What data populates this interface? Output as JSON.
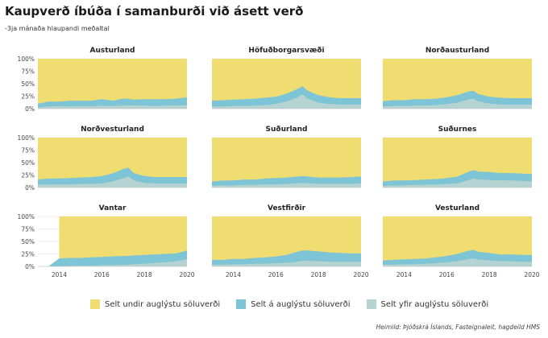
{
  "title": "Kaupverð íbúða í samanburði við ásett verð",
  "subtitle": "-3ja mánaða hlaupandi meðaltal",
  "source": "Heimild: Þjóðskrá Íslands, Fasteignaleit, hagdeild HMS",
  "colors": {
    "undir": "#f0dd72",
    "a": "#7dc5d6",
    "yfir": "#b6d3d3",
    "grid": "#dddddd"
  },
  "chart_data": {
    "type": "area",
    "stacked": true,
    "layout": "small-multiples-3x3",
    "xlim": [
      2013,
      2020
    ],
    "ylim": [
      0,
      100
    ],
    "x_ticks": [
      "2014",
      "2016",
      "2018",
      "2020"
    ],
    "y_ticks": [
      "0%",
      "25%",
      "50%",
      "75%",
      "100%"
    ],
    "legend": [
      "Selt undir auglýstu söluverði",
      "Selt á auglýstu söluverði",
      "Selt yfir auglýstu söluverði"
    ],
    "legend_position": "bottom",
    "x": [
      2013.0,
      2013.5,
      2014.0,
      2014.5,
      2015.0,
      2015.5,
      2016.0,
      2016.5,
      2017.0,
      2017.25,
      2017.5,
      2018.0,
      2018.5,
      2019.0,
      2019.5,
      2020.0
    ],
    "panels": [
      {
        "name": "Austurland",
        "yfir": [
          2,
          4,
          5,
          4,
          5,
          4,
          6,
          5,
          6,
          7,
          6,
          6,
          5,
          6,
          6,
          7
        ],
        "a": [
          8,
          10,
          9,
          12,
          11,
          12,
          13,
          11,
          14,
          13,
          12,
          13,
          14,
          13,
          14,
          16
        ]
      },
      {
        "name": "Höfuðborgarsvæði",
        "yfir": [
          4,
          4,
          5,
          5,
          6,
          7,
          9,
          14,
          22,
          28,
          20,
          12,
          9,
          8,
          8,
          8
        ],
        "a": [
          12,
          13,
          13,
          14,
          14,
          15,
          15,
          16,
          17,
          17,
          16,
          15,
          14,
          13,
          13,
          13
        ]
      },
      {
        "name": "Norðausturland",
        "yfir": [
          4,
          5,
          5,
          6,
          6,
          7,
          9,
          12,
          18,
          20,
          14,
          10,
          8,
          8,
          8,
          8
        ],
        "a": [
          11,
          12,
          12,
          13,
          13,
          13,
          14,
          15,
          16,
          16,
          15,
          14,
          14,
          13,
          13,
          13
        ]
      },
      {
        "name": "Norðvesturland",
        "yfir": [
          5,
          6,
          6,
          6,
          7,
          7,
          8,
          12,
          18,
          22,
          14,
          9,
          8,
          8,
          8,
          8
        ],
        "a": [
          11,
          12,
          12,
          13,
          13,
          14,
          15,
          16,
          19,
          18,
          15,
          14,
          13,
          13,
          13,
          13
        ]
      },
      {
        "name": "Suðurland",
        "yfir": [
          3,
          4,
          4,
          5,
          5,
          6,
          6,
          7,
          8,
          9,
          8,
          7,
          7,
          7,
          7,
          8
        ],
        "a": [
          9,
          10,
          10,
          11,
          11,
          12,
          13,
          13,
          14,
          14,
          14,
          13,
          13,
          13,
          14,
          14
        ]
      },
      {
        "name": "Suðurnes",
        "yfir": [
          3,
          4,
          4,
          5,
          5,
          6,
          7,
          8,
          14,
          18,
          16,
          15,
          14,
          14,
          13,
          12
        ],
        "a": [
          9,
          10,
          10,
          10,
          11,
          11,
          12,
          14,
          17,
          17,
          16,
          16,
          15,
          15,
          15,
          15
        ]
      },
      {
        "name": "Vantar",
        "yfir": [
          0,
          0,
          0,
          1,
          1,
          1,
          2,
          2,
          3,
          3,
          4,
          5,
          7,
          8,
          10,
          14
        ],
        "a": [
          0,
          0,
          16,
          16,
          16,
          17,
          17,
          18,
          18,
          18,
          18,
          18,
          17,
          17,
          16,
          18
        ]
      },
      {
        "name": "Vestfirðir",
        "yfir": [
          3,
          3,
          4,
          4,
          5,
          5,
          6,
          7,
          9,
          11,
          11,
          10,
          9,
          9,
          9,
          9
        ],
        "a": [
          10,
          10,
          11,
          11,
          12,
          13,
          14,
          16,
          20,
          21,
          21,
          20,
          19,
          18,
          17,
          17
        ]
      },
      {
        "name": "Vesturland",
        "yfir": [
          3,
          3,
          4,
          4,
          5,
          6,
          8,
          10,
          14,
          16,
          13,
          12,
          10,
          10,
          9,
          9
        ],
        "a": [
          9,
          10,
          10,
          11,
          11,
          12,
          13,
          15,
          17,
          17,
          16,
          15,
          14,
          14,
          14,
          14
        ]
      }
    ]
  }
}
